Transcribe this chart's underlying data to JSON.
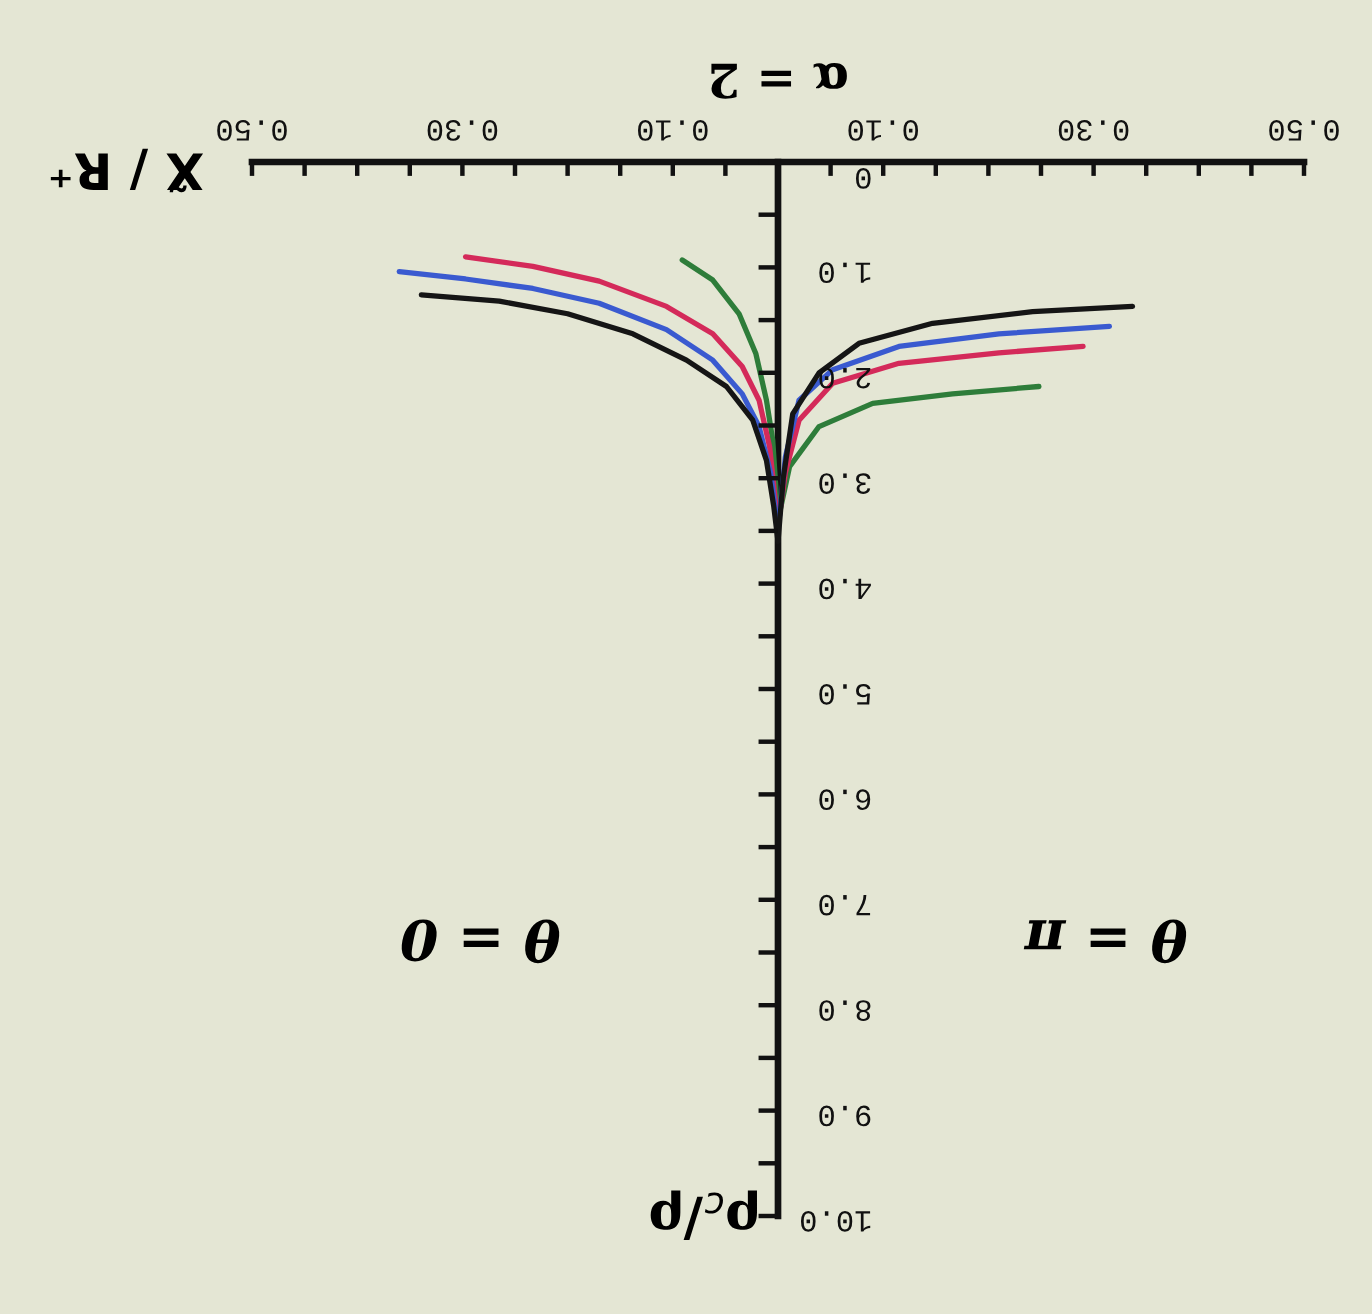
{
  "chart_data": {
    "type": "line",
    "title": "α = 2",
    "xlabel": "X̃ / R⁺",
    "ylabel": "ρ$_{c}$/ρ",
    "annotations": [
      "θ = 0",
      "θ = π"
    ],
    "xlim": [
      -0.5,
      0.5
    ],
    "ylim": [
      10,
      0
    ],
    "xticks": [
      {
        "value": -0.5,
        "label": "0.50"
      },
      {
        "value": -0.45,
        "label": null
      },
      {
        "value": -0.4,
        "label": null
      },
      {
        "value": -0.35,
        "label": null
      },
      {
        "value": -0.3,
        "label": "0.30"
      },
      {
        "value": -0.25,
        "label": null
      },
      {
        "value": -0.2,
        "label": null
      },
      {
        "value": -0.15,
        "label": null
      },
      {
        "value": -0.1,
        "label": "0.10"
      },
      {
        "value": -0.05,
        "label": null
      },
      {
        "value": 0.05,
        "label": null
      },
      {
        "value": 0.1,
        "label": "0.10"
      },
      {
        "value": 0.15,
        "label": null
      },
      {
        "value": 0.2,
        "label": null
      },
      {
        "value": 0.25,
        "label": null
      },
      {
        "value": 0.3,
        "label": "0.30"
      },
      {
        "value": 0.35,
        "label": null
      },
      {
        "value": 0.4,
        "label": null
      },
      {
        "value": 0.45,
        "label": null
      },
      {
        "value": 0.5,
        "label": "0.50"
      }
    ],
    "yticks": [
      0,
      {
        "value": 0.5,
        "label": null
      },
      {
        "value": 1,
        "label": "1.0"
      },
      {
        "value": 1.5,
        "label": null
      },
      {
        "value": 2,
        "label": "2.0"
      },
      {
        "value": 2.5,
        "label": null
      },
      {
        "value": 3,
        "label": "3.0"
      },
      {
        "value": 3.5,
        "label": null
      },
      {
        "value": 4,
        "label": "4.0"
      },
      {
        "value": 4.5,
        "label": null
      },
      {
        "value": 5,
        "label": "5.0"
      },
      {
        "value": 5.5,
        "label": null
      },
      {
        "value": 6,
        "label": "6.0"
      },
      {
        "value": 6.5,
        "label": null
      },
      {
        "value": 7,
        "label": "7.0"
      },
      {
        "value": 7.5,
        "label": null
      },
      {
        "value": 8,
        "label": "8.0"
      },
      {
        "value": 8.5,
        "label": null
      },
      {
        "value": 9,
        "label": "9.0"
      },
      {
        "value": 9.5,
        "label": null
      },
      {
        "value": 10,
        "label": "10.0"
      }
    ],
    "line_style": "solid",
    "series": [
      {
        "color": "#2e7d3a",
        "x": [
          -0.091,
          -0.062,
          -0.037,
          -0.021,
          -0.011,
          -0.005,
          0
        ],
        "values": [
          0.93,
          1.12,
          1.44,
          1.82,
          2.26,
          2.64,
          3.4
        ]
      },
      {
        "color": "#2e7d3a",
        "x": [
          0,
          0.011,
          0.039,
          0.09,
          0.166,
          0.248
        ],
        "values": [
          3.4,
          2.89,
          2.51,
          2.29,
          2.2,
          2.13
        ]
      },
      {
        "color": "#d42a5a",
        "x": [
          -0.297,
          -0.233,
          -0.17,
          -0.106,
          -0.062,
          -0.034,
          -0.018,
          -0.008,
          0
        ],
        "values": [
          0.9,
          0.99,
          1.13,
          1.37,
          1.63,
          1.94,
          2.26,
          2.7,
          3.45
        ]
      },
      {
        "color": "#d42a5a",
        "x": [
          0,
          0.007,
          0.02,
          0.052,
          0.115,
          0.21,
          0.29
        ],
        "values": [
          3.45,
          2.95,
          2.45,
          2.1,
          1.91,
          1.81,
          1.75
        ]
      },
      {
        "color": "#3a5ad0",
        "x": [
          -0.36,
          -0.297,
          -0.233,
          -0.17,
          -0.106,
          -0.062,
          -0.034,
          -0.018,
          -0.007,
          0
        ],
        "values": [
          1.04,
          1.11,
          1.2,
          1.34,
          1.59,
          1.88,
          2.2,
          2.51,
          2.95,
          3.5
        ]
      },
      {
        "color": "#3a5ad0",
        "x": [
          0,
          0.007,
          0.02,
          0.052,
          0.115,
          0.21,
          0.315
        ],
        "values": [
          3.5,
          2.8,
          2.26,
          1.97,
          1.75,
          1.63,
          1.56
        ]
      },
      {
        "color": "#151515",
        "x": [
          -0.339,
          -0.265,
          -0.2,
          -0.138,
          -0.087,
          -0.049,
          -0.024,
          -0.011,
          -0.004,
          0
        ],
        "values": [
          1.26,
          1.32,
          1.44,
          1.63,
          1.88,
          2.13,
          2.45,
          2.83,
          3.27,
          3.6
        ]
      },
      {
        "color": "#151515",
        "x": [
          0,
          0.005,
          0.014,
          0.039,
          0.077,
          0.147,
          0.242,
          0.337
        ],
        "values": [
          3.6,
          3.0,
          2.39,
          2.0,
          1.72,
          1.53,
          1.42,
          1.37
        ]
      }
    ]
  }
}
